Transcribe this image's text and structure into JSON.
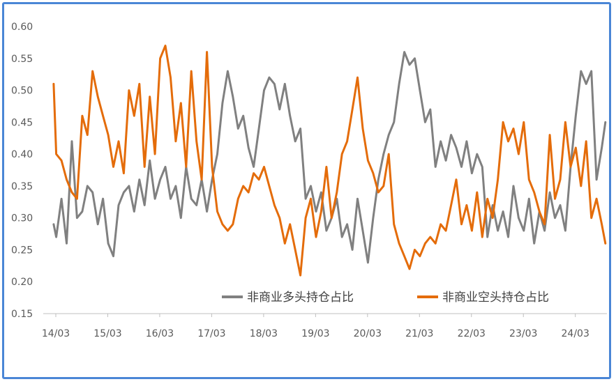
{
  "chart_data": {
    "type": "line",
    "title": "",
    "xlabel": "",
    "ylabel": "",
    "ylim": [
      0.15,
      0.6
    ],
    "y_ticks": [
      "0.60",
      "0.55",
      "0.50",
      "0.45",
      "0.40",
      "0.35",
      "0.30",
      "0.25",
      "0.20",
      "0.15"
    ],
    "x_ticks": [
      "14/03",
      "15/03",
      "16/03",
      "17/03",
      "18/03",
      "19/03",
      "20/03",
      "21/03",
      "22/03",
      "23/03",
      "24/03"
    ],
    "x_range": [
      "2014-03",
      "2024-08"
    ],
    "grid": false,
    "legend_position": "bottom-right",
    "series": [
      {
        "name": "非商业多头持仓占比",
        "color": "#808080",
        "points": [
          [
            2014.2,
            0.29
          ],
          [
            2014.25,
            0.27
          ],
          [
            2014.35,
            0.33
          ],
          [
            2014.45,
            0.26
          ],
          [
            2014.55,
            0.42
          ],
          [
            2014.65,
            0.3
          ],
          [
            2014.75,
            0.31
          ],
          [
            2014.85,
            0.35
          ],
          [
            2014.95,
            0.34
          ],
          [
            2015.05,
            0.29
          ],
          [
            2015.15,
            0.33
          ],
          [
            2015.25,
            0.26
          ],
          [
            2015.35,
            0.24
          ],
          [
            2015.45,
            0.32
          ],
          [
            2015.55,
            0.34
          ],
          [
            2015.65,
            0.35
          ],
          [
            2015.75,
            0.31
          ],
          [
            2015.85,
            0.36
          ],
          [
            2015.95,
            0.32
          ],
          [
            2016.05,
            0.39
          ],
          [
            2016.15,
            0.33
          ],
          [
            2016.25,
            0.36
          ],
          [
            2016.35,
            0.38
          ],
          [
            2016.45,
            0.33
          ],
          [
            2016.55,
            0.35
          ],
          [
            2016.65,
            0.3
          ],
          [
            2016.75,
            0.38
          ],
          [
            2016.85,
            0.33
          ],
          [
            2016.95,
            0.32
          ],
          [
            2017.05,
            0.36
          ],
          [
            2017.15,
            0.31
          ],
          [
            2017.25,
            0.36
          ],
          [
            2017.35,
            0.4
          ],
          [
            2017.45,
            0.48
          ],
          [
            2017.55,
            0.53
          ],
          [
            2017.65,
            0.49
          ],
          [
            2017.75,
            0.44
          ],
          [
            2017.85,
            0.46
          ],
          [
            2017.95,
            0.41
          ],
          [
            2018.05,
            0.38
          ],
          [
            2018.15,
            0.44
          ],
          [
            2018.25,
            0.5
          ],
          [
            2018.35,
            0.52
          ],
          [
            2018.45,
            0.51
          ],
          [
            2018.55,
            0.47
          ],
          [
            2018.65,
            0.51
          ],
          [
            2018.75,
            0.46
          ],
          [
            2018.85,
            0.42
          ],
          [
            2018.95,
            0.44
          ],
          [
            2019.05,
            0.33
          ],
          [
            2019.15,
            0.35
          ],
          [
            2019.25,
            0.31
          ],
          [
            2019.35,
            0.34
          ],
          [
            2019.45,
            0.28
          ],
          [
            2019.55,
            0.3
          ],
          [
            2019.65,
            0.33
          ],
          [
            2019.75,
            0.27
          ],
          [
            2019.85,
            0.29
          ],
          [
            2019.95,
            0.25
          ],
          [
            2020.05,
            0.33
          ],
          [
            2020.15,
            0.28
          ],
          [
            2020.25,
            0.23
          ],
          [
            2020.35,
            0.3
          ],
          [
            2020.45,
            0.36
          ],
          [
            2020.55,
            0.4
          ],
          [
            2020.65,
            0.43
          ],
          [
            2020.75,
            0.45
          ],
          [
            2020.85,
            0.51
          ],
          [
            2020.95,
            0.56
          ],
          [
            2021.05,
            0.54
          ],
          [
            2021.15,
            0.55
          ],
          [
            2021.25,
            0.5
          ],
          [
            2021.35,
            0.45
          ],
          [
            2021.45,
            0.47
          ],
          [
            2021.55,
            0.38
          ],
          [
            2021.65,
            0.42
          ],
          [
            2021.75,
            0.39
          ],
          [
            2021.85,
            0.43
          ],
          [
            2021.95,
            0.41
          ],
          [
            2022.05,
            0.38
          ],
          [
            2022.15,
            0.42
          ],
          [
            2022.25,
            0.37
          ],
          [
            2022.35,
            0.4
          ],
          [
            2022.45,
            0.38
          ],
          [
            2022.55,
            0.27
          ],
          [
            2022.65,
            0.32
          ],
          [
            2022.75,
            0.28
          ],
          [
            2022.85,
            0.31
          ],
          [
            2022.95,
            0.27
          ],
          [
            2023.05,
            0.35
          ],
          [
            2023.15,
            0.3
          ],
          [
            2023.25,
            0.28
          ],
          [
            2023.35,
            0.33
          ],
          [
            2023.45,
            0.26
          ],
          [
            2023.55,
            0.31
          ],
          [
            2023.65,
            0.28
          ],
          [
            2023.75,
            0.34
          ],
          [
            2023.85,
            0.3
          ],
          [
            2023.95,
            0.32
          ],
          [
            2024.05,
            0.28
          ],
          [
            2024.15,
            0.38
          ],
          [
            2024.25,
            0.46
          ],
          [
            2024.35,
            0.53
          ],
          [
            2024.45,
            0.51
          ],
          [
            2024.55,
            0.53
          ],
          [
            2024.65,
            0.36
          ],
          [
            2024.75,
            0.41
          ],
          [
            2024.82,
            0.45
          ]
        ]
      },
      {
        "name": "非商业空头持仓占比",
        "color": "#e46c0a",
        "points": [
          [
            2014.2,
            0.51
          ],
          [
            2014.25,
            0.4
          ],
          [
            2014.35,
            0.39
          ],
          [
            2014.45,
            0.36
          ],
          [
            2014.55,
            0.34
          ],
          [
            2014.65,
            0.33
          ],
          [
            2014.75,
            0.46
          ],
          [
            2014.85,
            0.43
          ],
          [
            2014.95,
            0.53
          ],
          [
            2015.05,
            0.49
          ],
          [
            2015.15,
            0.46
          ],
          [
            2015.25,
            0.43
          ],
          [
            2015.35,
            0.38
          ],
          [
            2015.45,
            0.42
          ],
          [
            2015.55,
            0.37
          ],
          [
            2015.65,
            0.5
          ],
          [
            2015.75,
            0.46
          ],
          [
            2015.85,
            0.51
          ],
          [
            2015.95,
            0.38
          ],
          [
            2016.05,
            0.49
          ],
          [
            2016.15,
            0.4
          ],
          [
            2016.25,
            0.55
          ],
          [
            2016.35,
            0.57
          ],
          [
            2016.45,
            0.52
          ],
          [
            2016.55,
            0.42
          ],
          [
            2016.65,
            0.48
          ],
          [
            2016.75,
            0.38
          ],
          [
            2016.85,
            0.53
          ],
          [
            2016.95,
            0.42
          ],
          [
            2017.05,
            0.36
          ],
          [
            2017.15,
            0.56
          ],
          [
            2017.25,
            0.38
          ],
          [
            2017.35,
            0.31
          ],
          [
            2017.45,
            0.29
          ],
          [
            2017.55,
            0.28
          ],
          [
            2017.65,
            0.29
          ],
          [
            2017.75,
            0.33
          ],
          [
            2017.85,
            0.35
          ],
          [
            2017.95,
            0.34
          ],
          [
            2018.05,
            0.37
          ],
          [
            2018.15,
            0.36
          ],
          [
            2018.25,
            0.38
          ],
          [
            2018.35,
            0.35
          ],
          [
            2018.45,
            0.32
          ],
          [
            2018.55,
            0.3
          ],
          [
            2018.65,
            0.26
          ],
          [
            2018.75,
            0.29
          ],
          [
            2018.85,
            0.25
          ],
          [
            2018.95,
            0.21
          ],
          [
            2019.05,
            0.3
          ],
          [
            2019.15,
            0.33
          ],
          [
            2019.25,
            0.27
          ],
          [
            2019.35,
            0.31
          ],
          [
            2019.45,
            0.38
          ],
          [
            2019.55,
            0.3
          ],
          [
            2019.65,
            0.34
          ],
          [
            2019.75,
            0.4
          ],
          [
            2019.85,
            0.42
          ],
          [
            2019.95,
            0.47
          ],
          [
            2020.05,
            0.52
          ],
          [
            2020.15,
            0.44
          ],
          [
            2020.25,
            0.39
          ],
          [
            2020.35,
            0.37
          ],
          [
            2020.45,
            0.34
          ],
          [
            2020.55,
            0.35
          ],
          [
            2020.65,
            0.4
          ],
          [
            2020.75,
            0.29
          ],
          [
            2020.85,
            0.26
          ],
          [
            2020.95,
            0.24
          ],
          [
            2021.05,
            0.22
          ],
          [
            2021.15,
            0.25
          ],
          [
            2021.25,
            0.24
          ],
          [
            2021.35,
            0.26
          ],
          [
            2021.45,
            0.27
          ],
          [
            2021.55,
            0.26
          ],
          [
            2021.65,
            0.29
          ],
          [
            2021.75,
            0.28
          ],
          [
            2021.85,
            0.32
          ],
          [
            2021.95,
            0.36
          ],
          [
            2022.05,
            0.29
          ],
          [
            2022.15,
            0.32
          ],
          [
            2022.25,
            0.28
          ],
          [
            2022.35,
            0.34
          ],
          [
            2022.45,
            0.27
          ],
          [
            2022.55,
            0.33
          ],
          [
            2022.65,
            0.3
          ],
          [
            2022.75,
            0.36
          ],
          [
            2022.85,
            0.45
          ],
          [
            2022.95,
            0.42
          ],
          [
            2023.05,
            0.44
          ],
          [
            2023.15,
            0.4
          ],
          [
            2023.25,
            0.45
          ],
          [
            2023.35,
            0.36
          ],
          [
            2023.45,
            0.34
          ],
          [
            2023.55,
            0.31
          ],
          [
            2023.65,
            0.29
          ],
          [
            2023.75,
            0.43
          ],
          [
            2023.85,
            0.33
          ],
          [
            2023.95,
            0.36
          ],
          [
            2024.05,
            0.45
          ],
          [
            2024.15,
            0.38
          ],
          [
            2024.25,
            0.41
          ],
          [
            2024.35,
            0.35
          ],
          [
            2024.45,
            0.42
          ],
          [
            2024.55,
            0.3
          ],
          [
            2024.65,
            0.33
          ],
          [
            2024.75,
            0.29
          ],
          [
            2024.82,
            0.26
          ]
        ]
      }
    ]
  },
  "colors": {
    "frame": "#4a86d6",
    "axis": "#bfbfbf"
  }
}
